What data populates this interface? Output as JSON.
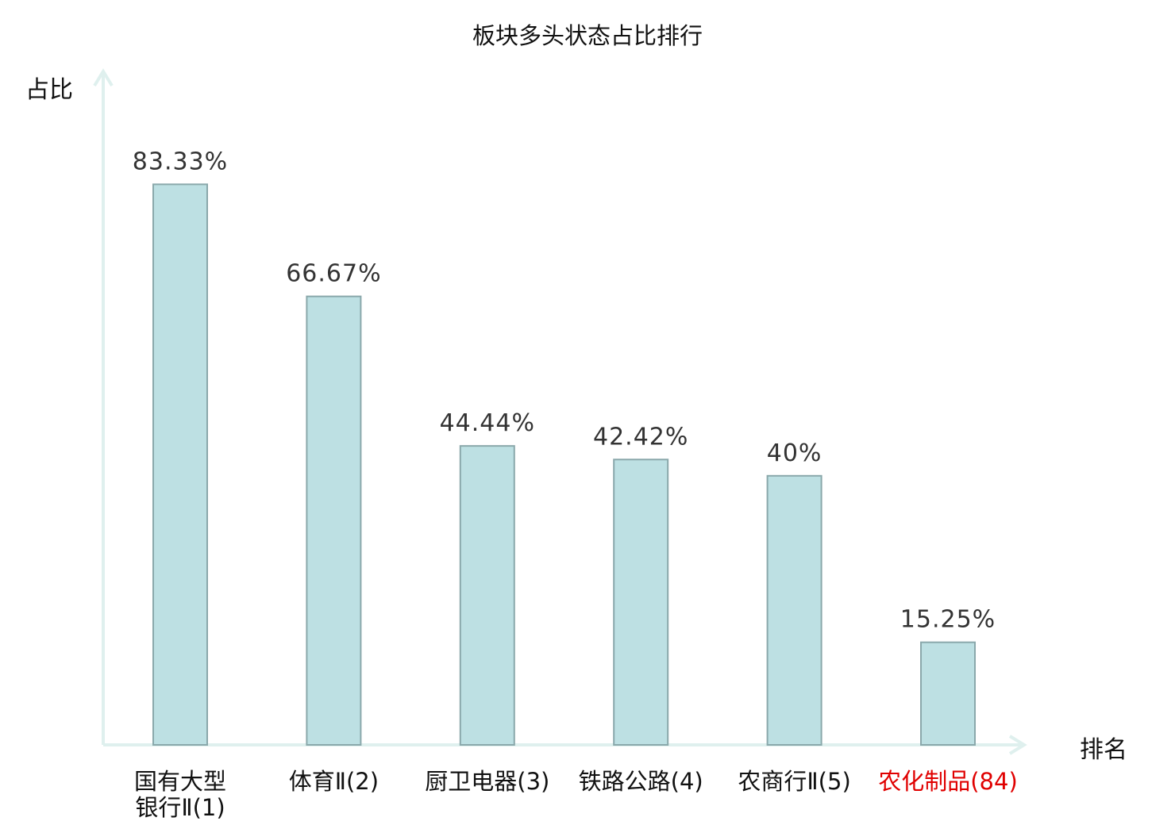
{
  "chart_data": {
    "type": "bar",
    "title": "板块多头状态占比排行",
    "ylabel": "占比",
    "xlabel": "排名",
    "ylim": [
      0,
      100
    ],
    "categories": [
      {
        "lines": [
          "国有大型",
          "银行Ⅱ(1)"
        ],
        "highlight": false
      },
      {
        "lines": [
          "体育Ⅱ(2)"
        ],
        "highlight": false
      },
      {
        "lines": [
          "厨卫电器(3)"
        ],
        "highlight": false
      },
      {
        "lines": [
          "铁路公路(4)"
        ],
        "highlight": false
      },
      {
        "lines": [
          "农商行Ⅱ(5)"
        ],
        "highlight": false
      },
      {
        "lines": [
          "农化制品(84)"
        ],
        "highlight": true
      }
    ],
    "values": [
      83.33,
      66.67,
      44.44,
      42.42,
      40,
      15.25
    ],
    "value_labels": [
      "83.33%",
      "66.67%",
      "44.44%",
      "42.42%",
      "40%",
      "15.25%"
    ],
    "grid": false,
    "legend": "none"
  },
  "colors": {
    "bar_fill": "#bde0e3",
    "bar_stroke": "#8aa8ab",
    "axis": "#dff0ee",
    "text": "#333333",
    "highlight": "#e00000"
  }
}
